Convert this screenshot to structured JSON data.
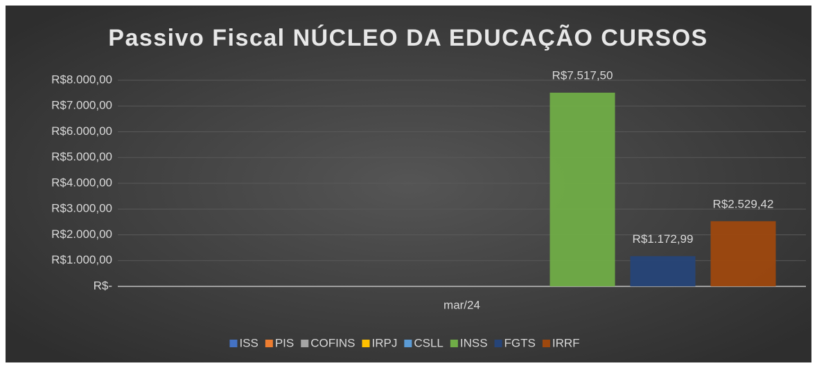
{
  "chart_data": {
    "type": "bar",
    "title": "Passivo Fiscal NÚCLEO DA EDUCAÇÃO CURSOS",
    "categories": [
      "mar/24"
    ],
    "series": [
      {
        "name": "ISS",
        "color": "#4472c4",
        "values": [
          0
        ]
      },
      {
        "name": "PIS",
        "color": "#ed7d31",
        "values": [
          0
        ]
      },
      {
        "name": "COFINS",
        "color": "#a5a5a5",
        "values": [
          0
        ]
      },
      {
        "name": "IRPJ",
        "color": "#ffc000",
        "values": [
          0
        ]
      },
      {
        "name": "CSLL",
        "color": "#5b9bd5",
        "values": [
          0
        ]
      },
      {
        "name": "INSS",
        "color": "#70ad47",
        "values": [
          7517.5
        ],
        "value_labels": [
          "R$7.517,50"
        ]
      },
      {
        "name": "FGTS",
        "color": "#264478",
        "values": [
          1172.99
        ],
        "value_labels": [
          "R$1.172,99"
        ]
      },
      {
        "name": "IRRF",
        "color": "#9e480e",
        "values": [
          2529.42
        ],
        "value_labels": [
          "R$2.529,42"
        ]
      }
    ],
    "ylim": [
      0,
      8000
    ],
    "yticks": [
      {
        "value": 0,
        "label": "R$-"
      },
      {
        "value": 1000,
        "label": "R$1.000,00"
      },
      {
        "value": 2000,
        "label": "R$2.000,00"
      },
      {
        "value": 3000,
        "label": "R$3.000,00"
      },
      {
        "value": 4000,
        "label": "R$4.000,00"
      },
      {
        "value": 5000,
        "label": "R$5.000,00"
      },
      {
        "value": 6000,
        "label": "R$6.000,00"
      },
      {
        "value": 7000,
        "label": "R$7.000,00"
      },
      {
        "value": 8000,
        "label": "R$8.000,00"
      }
    ],
    "grid": true,
    "legend": "bottom"
  }
}
